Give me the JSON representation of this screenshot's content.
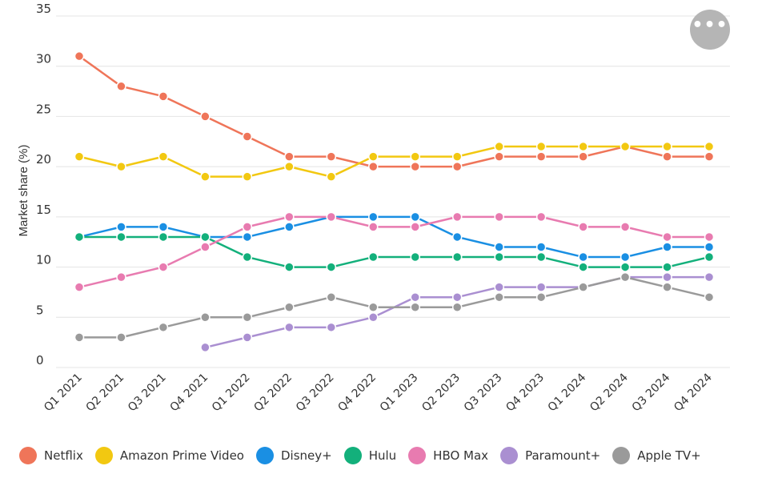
{
  "menu": {
    "icon": "more-dots-icon",
    "label": "•••"
  },
  "chart_data": {
    "type": "line",
    "title": "",
    "xlabel": "",
    "ylabel": "Market share (%)",
    "ylim": [
      0,
      35
    ],
    "yticks": [
      0,
      5,
      10,
      15,
      20,
      25,
      30,
      35
    ],
    "grid": true,
    "legend": "bottom",
    "categories": [
      "Q1 2021",
      "Q2 2021",
      "Q3 2021",
      "Q4 2021",
      "Q1 2022",
      "Q2 2022",
      "Q3 2022",
      "Q4 2022",
      "Q1 2023",
      "Q2 2023",
      "Q3 2023",
      "Q4 2023",
      "Q1 2024",
      "Q2 2024",
      "Q3 2024",
      "Q4 2024"
    ],
    "series": [
      {
        "name": "Netflix",
        "color": "#ef7559",
        "values": [
          31,
          28,
          27,
          25,
          23,
          21,
          21,
          20,
          20,
          20,
          21,
          21,
          21,
          22,
          21,
          21
        ]
      },
      {
        "name": "Amazon Prime Video",
        "color": "#f2c811",
        "values": [
          21,
          20,
          21,
          19,
          19,
          20,
          19,
          21,
          21,
          21,
          22,
          22,
          22,
          22,
          22,
          22
        ]
      },
      {
        "name": "Disney+",
        "color": "#1a8fe3",
        "values": [
          13,
          14,
          14,
          13,
          13,
          14,
          15,
          15,
          15,
          13,
          12,
          12,
          11,
          11,
          12,
          12
        ]
      },
      {
        "name": "Hulu",
        "color": "#13b07b",
        "values": [
          13,
          13,
          13,
          13,
          11,
          10,
          10,
          11,
          11,
          11,
          11,
          11,
          10,
          10,
          10,
          11
        ]
      },
      {
        "name": "HBO Max",
        "color": "#e87bb0",
        "values": [
          8,
          9,
          10,
          12,
          14,
          15,
          15,
          14,
          14,
          15,
          15,
          15,
          14,
          14,
          13,
          13
        ]
      },
      {
        "name": "Paramount+",
        "color": "#aa8fd1",
        "values": [
          null,
          null,
          null,
          2,
          3,
          4,
          4,
          5,
          7,
          7,
          8,
          8,
          8,
          9,
          9,
          9
        ]
      },
      {
        "name": "Apple TV+",
        "color": "#9a9a9a",
        "values": [
          3,
          3,
          4,
          5,
          5,
          6,
          7,
          6,
          6,
          6,
          7,
          7,
          8,
          9,
          8,
          7
        ]
      }
    ]
  }
}
